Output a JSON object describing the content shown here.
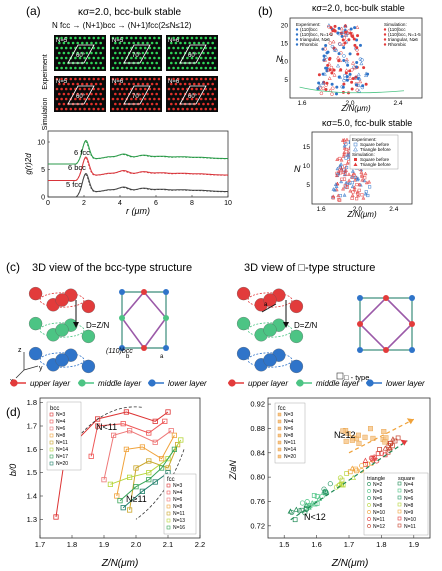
{
  "colors": {
    "exp_green": "#2fd35a",
    "sim_red": "#e0302a",
    "blue": "#2f74c9",
    "red": "#e23b3b",
    "green": "#4cc484",
    "purple": "#9b5aa8",
    "orange": "#f0a23a",
    "dark_green": "#1f8a55",
    "lime": "#b6d63a"
  },
  "panel_a": {
    "label": "(a)",
    "title": "κσ=2.0, bcc-bulk stable",
    "subtitle": "N fcc → (N+1)bcc → (N+1)fcc(2≤N≤12)",
    "row_labels": [
      "Experiment",
      "Simulation"
    ],
    "tiles": [
      {
        "n": "N=5",
        "angle": "60°"
      },
      {
        "n": "N=5",
        "angle": "70°"
      },
      {
        "n": "N=6",
        "angle": "60°"
      },
      {
        "n": "N=5",
        "angle": "60°"
      },
      {
        "n": "N=6",
        "angle": "70°"
      },
      {
        "n": "N=6",
        "angle": "60°"
      }
    ],
    "chart_data": {
      "type": "line",
      "xlabel": "r (μm)",
      "ylabel": "g(r)2d",
      "xlim": [
        0,
        10
      ],
      "ylim": [
        0,
        12
      ],
      "xticks": [
        0,
        2,
        4,
        6,
        8,
        10
      ],
      "yticks": [
        0,
        5,
        10
      ],
      "series": [
        {
          "name": "6 fcc",
          "offset": 6
        },
        {
          "name": "6 bcc",
          "offset": 3
        },
        {
          "name": "5 fcc",
          "offset": 0
        }
      ]
    }
  },
  "panel_b": {
    "label": "(b)",
    "top": {
      "title": "κσ=2.0, bcc-bulk stable",
      "xlabel": "Z/N(μm)",
      "ylabel": "N",
      "xticks": [
        "1.6",
        "2.0",
        "2.4"
      ],
      "yticks": [
        "5",
        "10",
        "15",
        "20"
      ],
      "legend_exp": [
        "Experiment:",
        "(110)bcc",
        "(110)bcc, N=1-5",
        "triangular, N≥6",
        "Rhombic"
      ],
      "legend_sim": [
        "Simulation:",
        "(110)bcc",
        "(110)bcc, N=1-5",
        "triangular, N≥6",
        "Rhombic"
      ]
    },
    "bottom": {
      "title": "κσ=5.0, fcc-bulk stable",
      "xlabel": "Z/N(μm)",
      "ylabel": "N",
      "xticks": [
        "1.6",
        "2.0",
        "2.4"
      ],
      "yticks": [
        "5",
        "10",
        "15"
      ],
      "legend": [
        "Experiment:",
        "Square before",
        "Triangle before",
        "Simulation:",
        "Square before",
        "Triangle before"
      ]
    }
  },
  "panel_c": {
    "label": "(c)",
    "left_title": "3D view of the bcc-type structure",
    "right_title": "3D view of □-type structure",
    "dz_label": "D=Z/N",
    "plane_label": "(110)bcc",
    "a_label": "a",
    "b_label": "b",
    "square_type": "□ - type",
    "axes": [
      "z",
      "y",
      "x"
    ],
    "legend": [
      "upper layer",
      "middle layer",
      "lower layer"
    ]
  },
  "panel_d": {
    "label": "(d)",
    "left": {
      "xlabel": "Z/N(μm)",
      "ylabel": "b/0",
      "xticks": [
        "1.7",
        "1.8",
        "1.9",
        "2.0",
        "2.1",
        "2.2"
      ],
      "yticks": [
        "1.3",
        "1.4",
        "1.5",
        "1.6",
        "1.7",
        "1.8"
      ],
      "legend_bcc_title": "bcc",
      "legend_bcc": [
        "N=3",
        "N=4",
        "N=6",
        "N=8",
        "N=11",
        "N=14",
        "N=17",
        "N=20"
      ],
      "legend_fcc_title": "fcc",
      "legend_fcc": [
        "N=3",
        "N=4",
        "N=6",
        "N=8",
        "N=11",
        "N=13",
        "N=16"
      ],
      "annotation_top": "N<11",
      "annotation_bottom": "N≥11"
    },
    "right": {
      "xlabel": "Z/N(μm)",
      "ylabel": "Z/aN",
      "xticks": [
        "1.5",
        "1.6",
        "1.7",
        "1.8",
        "1.9"
      ],
      "yticks": [
        "0.72",
        "0.76",
        "0.80",
        "0.84",
        "0.88",
        "0.92"
      ],
      "legend_fcc_title": "fcc",
      "legend_fcc": [
        "N=3",
        "N=4",
        "N=6",
        "N=8",
        "N=11",
        "N=14",
        "N=20"
      ],
      "legend_tri_title": "triangle",
      "legend_tri": [
        "N=2",
        "N=3",
        "N=6",
        "N=8",
        "N=10",
        "N=11",
        "N=12"
      ],
      "legend_sq_title": "square",
      "legend_sq": [
        "N=4",
        "N=5",
        "N=6",
        "N=8",
        "N=9",
        "N=10",
        "N=11"
      ],
      "annotation_top": "N≥12",
      "annotation_bottom": "N<12"
    }
  }
}
